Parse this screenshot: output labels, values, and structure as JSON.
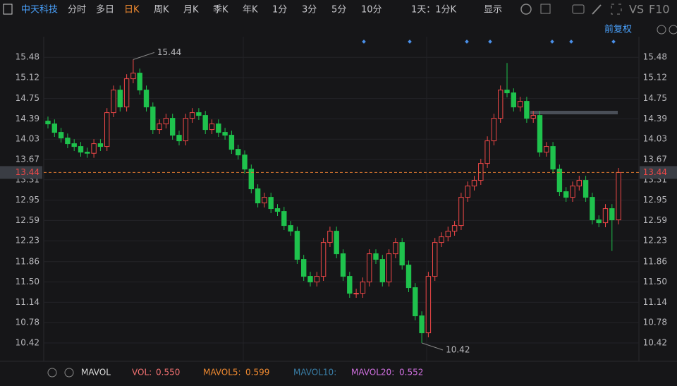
{
  "toolbar": {
    "stock": "中天科技",
    "periods": [
      "分时",
      "多日",
      "日K",
      "周K",
      "月K",
      "季K",
      "年K",
      "1分",
      "3分",
      "5分",
      "10分"
    ],
    "range": "1天：1分K",
    "display": "显示",
    "vs": "VS",
    "f10": "F10"
  },
  "adjust": "前复权",
  "volume_bar": {
    "indicator": "MAVOL",
    "vol_label": "VOL:",
    "vol": "0.550",
    "ma5_label": "MAVOL5:",
    "ma5": "0.599",
    "ma10_label": "MAVOL10:",
    "ma20_label": "MAVOL20:",
    "ma20": "0.552"
  },
  "chart_data": {
    "type": "candlestick",
    "open": [
      14.35,
      14.3,
      14.15,
      14.05,
      13.95,
      13.9,
      13.8,
      13.78,
      13.95,
      13.9,
      14.5,
      14.9,
      14.6,
      15.1,
      15.2,
      14.9,
      14.6,
      14.2,
      14.3,
      14.4,
      14.1,
      14.0,
      14.4,
      14.5,
      14.45,
      14.2,
      14.3,
      14.15,
      14.1,
      13.85,
      13.75,
      13.5,
      13.15,
      12.9,
      13.0,
      12.8,
      12.75,
      12.5,
      12.4,
      11.9,
      11.6,
      11.5,
      11.6,
      12.2,
      12.4,
      12.0,
      11.6,
      11.3,
      11.3,
      11.5,
      12.0,
      11.9,
      11.5,
      12.0,
      12.2,
      11.8,
      11.4,
      10.9,
      10.6,
      11.6,
      12.2,
      12.3,
      12.4,
      12.5,
      13.0,
      13.2,
      13.3,
      13.6,
      14.0,
      14.4,
      14.9,
      14.85,
      14.6,
      14.7,
      14.4,
      14.45,
      13.8,
      13.9,
      13.5,
      13.1,
      13.0,
      13.2,
      13.3,
      13.0,
      12.6,
      12.55,
      12.8,
      12.6
    ],
    "high": [
      14.43,
      14.38,
      14.23,
      14.13,
      14.03,
      13.98,
      13.88,
      14.03,
      14.03,
      14.58,
      14.98,
      14.98,
      15.18,
      15.44,
      15.28,
      14.98,
      14.68,
      14.38,
      14.48,
      14.48,
      14.18,
      14.48,
      14.58,
      14.58,
      14.53,
      14.38,
      14.38,
      14.23,
      14.18,
      13.93,
      13.83,
      13.58,
      13.23,
      13.08,
      13.08,
      12.88,
      12.83,
      12.58,
      12.48,
      11.98,
      11.68,
      11.68,
      12.28,
      12.48,
      12.48,
      12.08,
      11.68,
      11.38,
      11.58,
      12.08,
      12.08,
      11.98,
      12.08,
      12.28,
      12.28,
      11.88,
      11.48,
      10.98,
      11.68,
      12.28,
      12.38,
      12.48,
      12.58,
      13.08,
      13.28,
      13.38,
      13.68,
      14.08,
      14.48,
      14.98,
      15.38,
      14.93,
      14.78,
      14.78,
      14.53,
      14.53,
      13.98,
      13.98,
      13.58,
      13.18,
      13.28,
      13.38,
      13.38,
      13.08,
      12.68,
      12.88,
      12.88,
      13.52
    ],
    "low": [
      14.22,
      14.07,
      13.97,
      13.87,
      13.82,
      13.72,
      13.7,
      13.7,
      13.82,
      13.82,
      14.42,
      14.52,
      14.52,
      15.02,
      14.82,
      14.52,
      14.12,
      14.12,
      14.22,
      14.02,
      13.92,
      13.92,
      14.32,
      14.37,
      14.12,
      14.12,
      14.07,
      14.02,
      13.77,
      13.67,
      13.42,
      13.07,
      12.82,
      12.82,
      12.72,
      12.67,
      12.42,
      12.32,
      11.82,
      11.52,
      11.42,
      11.42,
      11.52,
      12.12,
      11.92,
      11.52,
      11.22,
      11.22,
      11.22,
      11.42,
      11.82,
      11.42,
      11.42,
      11.92,
      11.72,
      11.32,
      10.82,
      10.42,
      10.52,
      11.52,
      12.12,
      12.22,
      12.32,
      12.42,
      12.92,
      13.12,
      13.22,
      13.52,
      13.92,
      14.32,
      14.77,
      14.52,
      14.52,
      14.32,
      14.32,
      13.72,
      13.72,
      13.42,
      13.02,
      12.92,
      12.92,
      13.12,
      12.92,
      12.52,
      12.47,
      12.47,
      12.05,
      12.52
    ],
    "close": [
      14.3,
      14.15,
      14.05,
      13.95,
      13.9,
      13.8,
      13.78,
      13.95,
      13.9,
      14.5,
      14.9,
      14.6,
      15.1,
      15.2,
      14.9,
      14.6,
      14.2,
      14.3,
      14.4,
      14.1,
      14.0,
      14.4,
      14.5,
      14.45,
      14.2,
      14.3,
      14.15,
      14.1,
      13.85,
      13.75,
      13.5,
      13.15,
      12.9,
      13.0,
      12.8,
      12.75,
      12.5,
      12.4,
      11.9,
      11.6,
      11.5,
      11.6,
      12.2,
      12.4,
      12.0,
      11.6,
      11.3,
      11.3,
      11.5,
      12.0,
      11.9,
      11.5,
      12.0,
      12.2,
      11.8,
      11.4,
      10.9,
      10.6,
      11.6,
      12.2,
      12.3,
      12.4,
      12.5,
      13.0,
      13.2,
      13.3,
      13.6,
      14.0,
      14.4,
      14.9,
      14.85,
      14.6,
      14.7,
      14.4,
      14.45,
      13.8,
      13.9,
      13.5,
      13.1,
      13.0,
      13.2,
      13.3,
      13.0,
      12.6,
      12.55,
      12.8,
      12.6,
      13.44
    ],
    "up_color": "#f04848",
    "down_color": "#1fc24d",
    "ylim": [
      10.12,
      15.72
    ],
    "yticks": [
      15.48,
      15.12,
      14.75,
      14.39,
      14.03,
      13.67,
      13.31,
      12.95,
      12.59,
      12.23,
      11.86,
      {
        "value": 11.5,
        "label": "11.50"
      },
      11.14,
      10.78,
      10.42
    ],
    "grid": true,
    "last_price": 13.44,
    "annotations": [
      {
        "text": "15.44",
        "index": 13,
        "value": 15.44
      },
      {
        "text": "10.42",
        "index": 57,
        "value": 10.42
      }
    ]
  }
}
